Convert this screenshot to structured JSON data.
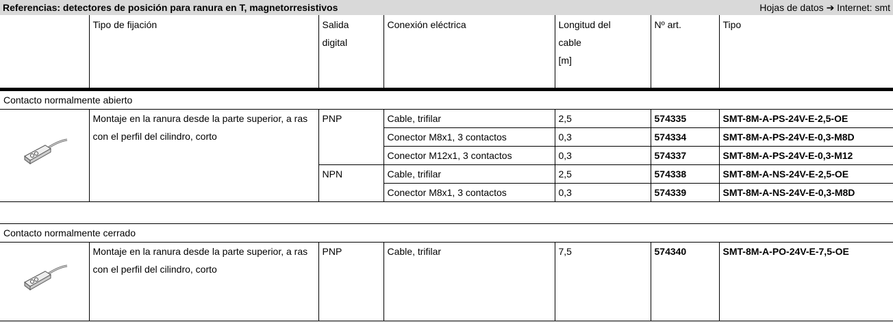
{
  "header": {
    "title": "Referencias: detectores de posición para ranura en T, magnetorresistivos",
    "datasheet": "Hojas de datos ➔ Internet: smt"
  },
  "columns": [
    [
      "Tipo de fijación"
    ],
    [
      "Salida",
      "digital"
    ],
    [
      "Conexión eléctrica"
    ],
    [
      "Longitud del",
      "cable",
      "[m]"
    ],
    [
      "Nº art."
    ],
    [
      "Tipo"
    ]
  ],
  "sections": [
    {
      "title": "Contacto normalmente abierto",
      "mounting": "Montaje en la ranura desde la parte superior, a ras con el perfil del cilindro, corto",
      "outputs": [
        {
          "output": "PNP",
          "rows": [
            [
              "Cable, trifilar",
              "2,5",
              "574335",
              "SMT-8M-A-PS-24V-E-2,5-OE"
            ],
            [
              "Conector M8x1, 3 contactos",
              "0,3",
              "574334",
              "SMT-8M-A-PS-24V-E-0,3-M8D"
            ],
            [
              "Conector M12x1, 3 contactos",
              "0,3",
              "574337",
              "SMT-8M-A-PS-24V-E-0,3-M12"
            ]
          ]
        },
        {
          "output": "NPN",
          "rows": [
            [
              "Cable, trifilar",
              "2,5",
              "574338",
              "SMT-8M-A-NS-24V-E-2,5-OE"
            ],
            [
              "Conector M8x1, 3 contactos",
              "0,3",
              "574339",
              "SMT-8M-A-NS-24V-E-0,3-M8D"
            ]
          ]
        }
      ]
    },
    {
      "title": "Contacto normalmente cerrado",
      "mounting": "Montaje en la ranura desde la parte superior, a ras con el perfil del cilindro, corto",
      "outputs": [
        {
          "output": "PNP",
          "rows": [
            [
              "Cable, trifilar",
              "7,5",
              "574340",
              "SMT-8M-A-PO-24V-E-7,5-OE"
            ]
          ]
        }
      ]
    }
  ]
}
